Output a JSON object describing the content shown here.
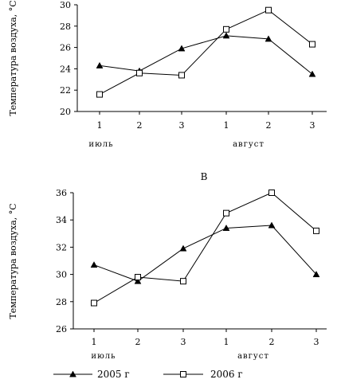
{
  "chart_data": [
    {
      "type": "line",
      "title": "",
      "ylabel": "Температура воздуха, °С",
      "categories": [
        "1",
        "2",
        "3",
        "1",
        "2",
        "3"
      ],
      "groups": [
        "июль",
        "август"
      ],
      "ylim": [
        20,
        30
      ],
      "yticks": [
        20,
        22,
        24,
        26,
        28,
        30
      ],
      "grid": false,
      "series": [
        {
          "name": "2005 г",
          "marker": "triangle",
          "values": [
            24.3,
            23.8,
            25.9,
            27.1,
            26.8,
            23.5
          ]
        },
        {
          "name": "2006 г",
          "marker": "square",
          "values": [
            21.6,
            23.6,
            23.4,
            27.7,
            29.5,
            26.3
          ]
        }
      ]
    },
    {
      "type": "line",
      "title": "В",
      "ylabel": "Температура воздуха, °С",
      "categories": [
        "1",
        "2",
        "3",
        "1",
        "2",
        "3"
      ],
      "groups": [
        "июль",
        "август"
      ],
      "ylim": [
        26,
        36
      ],
      "yticks": [
        26,
        28,
        30,
        32,
        34,
        36
      ],
      "grid": false,
      "series": [
        {
          "name": "2005 г",
          "marker": "triangle",
          "values": [
            30.7,
            29.5,
            31.9,
            33.4,
            33.6,
            30.0
          ]
        },
        {
          "name": "2006 г",
          "marker": "square",
          "values": [
            27.9,
            29.8,
            29.5,
            34.5,
            36.0,
            33.2
          ]
        }
      ]
    }
  ],
  "legend": {
    "position": "bottom",
    "items": [
      {
        "label": "2005 г",
        "marker": "triangle"
      },
      {
        "label": "2006 г",
        "marker": "square"
      }
    ]
  }
}
